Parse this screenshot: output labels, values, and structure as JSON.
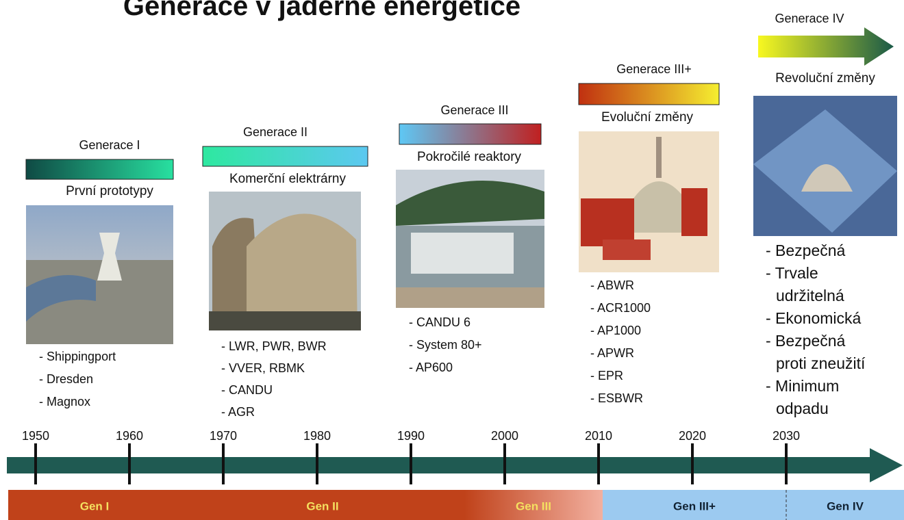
{
  "title": "Generace v jaderné energetice",
  "generations": [
    {
      "label": "Generace I",
      "subtitle": "První prototypy",
      "items": [
        "- Shippingport",
        "- Dresden",
        "- Magnox"
      ]
    },
    {
      "label": "Generace II",
      "subtitle": "Komerční elektrárny",
      "items": [
        "- LWR, PWR, BWR",
        "- VVER, RBMK",
        "- CANDU",
        "- AGR"
      ]
    },
    {
      "label": "Generace III",
      "subtitle": "Pokročilé reaktory",
      "items": [
        "- CANDU 6",
        "- System 80+",
        "- AP600"
      ]
    },
    {
      "label": "Generace III+",
      "subtitle": "Evoluční změny",
      "items": [
        "- ABWR",
        "- ACR1000",
        "- AP1000",
        "- APWR",
        "- EPR",
        "- ESBWR"
      ]
    },
    {
      "label": "Generace IV",
      "subtitle": "Revoluční změny",
      "items": [
        "- Bezpečná",
        "- Trvale",
        "udržitelná",
        "- Ekonomická",
        "- Bezpečná",
        "proti zneužití",
        "- Minimum",
        "odpadu"
      ]
    }
  ],
  "timeline": {
    "years": [
      1950,
      1960,
      1970,
      1980,
      1990,
      2000,
      2010,
      2020,
      2030
    ]
  },
  "bands": [
    "Gen I",
    "Gen II",
    "Gen III",
    "Gen III+",
    "Gen IV"
  ]
}
